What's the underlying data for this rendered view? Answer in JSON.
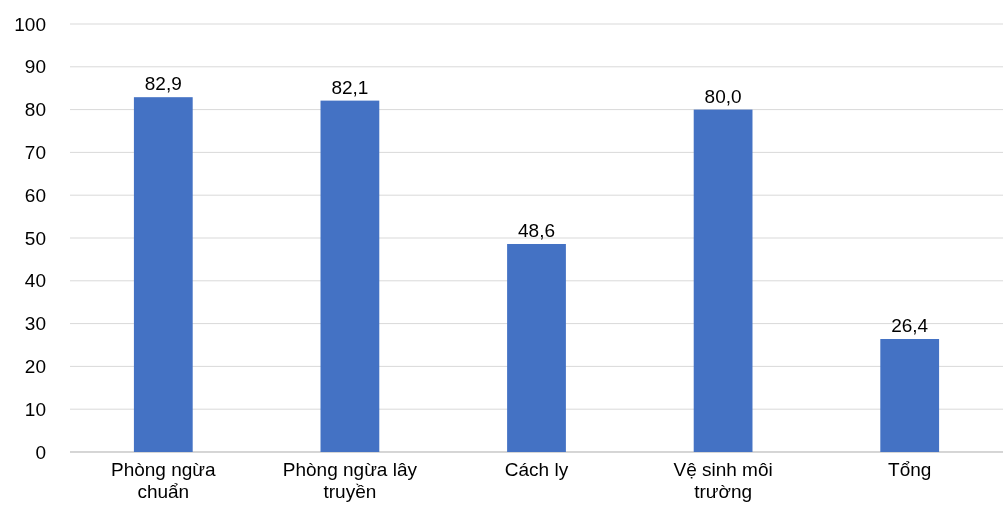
{
  "chart_data": {
    "type": "bar",
    "categories": [
      "Phòng ngừa chuẩn",
      "Phòng ngừa lây truyền",
      "Cách ly",
      "Vệ sinh môi trường",
      "Tổng"
    ],
    "values": [
      82.9,
      82.1,
      48.6,
      80.0,
      26.4
    ],
    "value_labels": [
      "82,9",
      "82,1",
      "48,6",
      "80,0",
      "26,4"
    ],
    "color": "#4472c4",
    "ylim": [
      0,
      100
    ],
    "yticks": [
      0,
      10,
      20,
      30,
      40,
      50,
      60,
      70,
      80,
      90,
      100
    ],
    "grid": "y"
  }
}
